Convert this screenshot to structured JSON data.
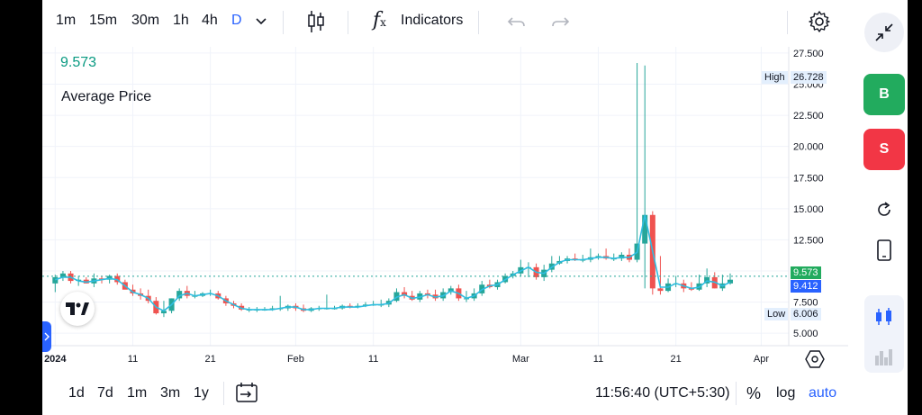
{
  "timeframes": [
    "1m",
    "15m",
    "30m",
    "1h",
    "4h",
    "D"
  ],
  "active_timeframe": "D",
  "toolbar": {
    "indicators_label": "Indicators"
  },
  "legend": {
    "last_price": "9.573",
    "title": "Average Price"
  },
  "price_axis": {
    "ticks": [
      "27.500",
      "25.000",
      "22.500",
      "20.000",
      "17.500",
      "15.000",
      "12.500",
      "7.500",
      "5.000"
    ],
    "high_label": "High",
    "high_value": "26.728",
    "low_label": "Low",
    "low_value": "6.006",
    "last_value": "9.573",
    "avg_value": "9.412"
  },
  "time_axis": {
    "labels": [
      "2024",
      "11",
      "21",
      "Feb",
      "11",
      "Mar",
      "11",
      "21",
      "Apr"
    ]
  },
  "bottom": {
    "ranges": [
      "1d",
      "7d",
      "1m",
      "3m",
      "1y"
    ],
    "clock": "11:56:40 (UTC+5:30)",
    "percent": "%",
    "log": "log",
    "auto": "auto"
  },
  "side": {
    "buy": "B",
    "sell": "S"
  },
  "colors": {
    "up": "#26a69a",
    "down": "#ef5350",
    "accent": "#2962ff",
    "buy": "#22ab5e",
    "sell": "#f23645",
    "line": "#2ebde0"
  },
  "chart_data": {
    "type": "candlestick",
    "x": [
      "2024-01-01",
      "2024-01-02",
      "2024-01-03",
      "2024-01-04",
      "2024-01-05",
      "2024-01-06",
      "2024-01-07",
      "2024-01-08",
      "2024-01-09",
      "2024-01-10",
      "2024-01-11",
      "2024-01-12",
      "2024-01-13",
      "2024-01-14",
      "2024-01-15",
      "2024-01-16",
      "2024-01-17",
      "2024-01-18",
      "2024-01-19",
      "2024-01-20",
      "2024-01-21",
      "2024-01-22",
      "2024-01-23",
      "2024-01-24",
      "2024-01-25",
      "2024-01-26",
      "2024-01-27",
      "2024-01-28",
      "2024-01-29",
      "2024-01-30",
      "2024-01-31",
      "2024-02-01",
      "2024-02-02",
      "2024-02-03",
      "2024-02-04",
      "2024-02-05",
      "2024-02-06",
      "2024-02-07",
      "2024-02-08",
      "2024-02-09",
      "2024-02-10",
      "2024-02-11",
      "2024-02-12",
      "2024-02-13",
      "2024-02-14",
      "2024-02-15",
      "2024-02-16",
      "2024-02-17",
      "2024-02-18",
      "2024-02-19",
      "2024-02-20",
      "2024-02-21",
      "2024-02-22",
      "2024-02-23",
      "2024-02-24",
      "2024-02-25",
      "2024-02-26",
      "2024-02-27",
      "2024-02-28",
      "2024-02-29",
      "2024-03-01",
      "2024-03-02",
      "2024-03-03",
      "2024-03-04",
      "2024-03-05",
      "2024-03-06",
      "2024-03-07",
      "2024-03-08",
      "2024-03-09",
      "2024-03-10",
      "2024-03-11",
      "2024-03-12",
      "2024-03-13",
      "2024-03-14",
      "2024-03-15",
      "2024-03-16",
      "2024-03-17",
      "2024-03-18",
      "2024-03-19",
      "2024-03-20",
      "2024-03-21",
      "2024-03-22",
      "2024-03-23",
      "2024-03-24",
      "2024-03-25",
      "2024-03-26",
      "2024-03-27",
      "2024-03-28"
    ],
    "open": [
      9.0,
      9.5,
      9.8,
      9.2,
      9.3,
      9.0,
      9.4,
      9.3,
      9.6,
      9.1,
      8.5,
      8.2,
      8.0,
      7.6,
      6.6,
      6.8,
      7.8,
      8.4,
      8.0,
      8.0,
      8.2,
      8.2,
      7.8,
      7.4,
      7.2,
      6.9,
      6.9,
      6.9,
      6.9,
      7.0,
      7.0,
      7.2,
      7.0,
      6.8,
      7.0,
      7.0,
      7.0,
      7.0,
      7.2,
      7.1,
      7.2,
      7.3,
      7.3,
      7.3,
      7.6,
      8.3,
      8.0,
      7.7,
      8.2,
      8.1,
      7.8,
      8.3,
      8.6,
      7.8,
      7.8,
      8.2,
      8.9,
      8.7,
      9.1,
      9.6,
      9.8,
      10.3,
      10.3,
      9.5,
      10.1,
      10.6,
      10.8,
      11.0,
      10.9,
      10.9,
      11.1,
      11.2,
      11.0,
      11.0,
      11.3,
      10.9,
      12.2,
      14.5,
      8.6,
      8.4,
      9.0,
      9.0,
      8.6,
      8.5,
      9.0,
      9.5,
      8.6,
      9.0
    ],
    "high": [
      9.7,
      10.0,
      10.0,
      9.6,
      9.5,
      9.8,
      9.6,
      9.7,
      9.8,
      9.3,
      8.9,
      8.6,
      8.5,
      7.9,
      7.6,
      7.8,
      8.6,
      8.8,
      8.4,
      8.3,
      8.5,
      8.4,
      8.0,
      7.6,
      7.4,
      7.1,
      7.1,
      7.1,
      7.2,
      8.0,
      7.3,
      7.4,
      7.3,
      7.1,
      7.2,
      8.1,
      7.2,
      7.3,
      7.4,
      7.4,
      7.5,
      7.6,
      7.7,
      7.8,
      8.6,
      8.7,
      8.4,
      8.4,
      8.5,
      8.5,
      8.6,
      8.8,
      8.9,
      8.4,
      8.6,
      9.2,
      9.3,
      9.3,
      9.8,
      10.0,
      10.9,
      10.7,
      10.6,
      10.5,
      11.2,
      11.2,
      11.2,
      11.4,
      11.3,
      11.8,
      11.4,
      11.8,
      11.4,
      11.5,
      11.8,
      26.7,
      26.5,
      14.8,
      11.2,
      9.4,
      9.6,
      9.3,
      9.1,
      9.7,
      10.2,
      9.9,
      9.7,
      9.8
    ],
    "low": [
      8.3,
      9.2,
      9.0,
      8.8,
      9.0,
      8.7,
      9.0,
      9.0,
      8.9,
      8.6,
      8.0,
      7.7,
      7.4,
      6.5,
      6.3,
      6.6,
      7.6,
      7.8,
      7.8,
      7.9,
      8.0,
      7.7,
      7.2,
      7.0,
      6.8,
      6.7,
      6.7,
      6.8,
      6.8,
      6.8,
      6.8,
      6.8,
      6.7,
      6.7,
      6.8,
      6.9,
      6.9,
      6.9,
      7.0,
      7.0,
      7.1,
      7.2,
      7.1,
      7.1,
      7.5,
      7.8,
      7.6,
      7.5,
      7.8,
      7.6,
      7.6,
      8.1,
      7.6,
      7.5,
      7.6,
      8.0,
      8.6,
      8.5,
      9.0,
      9.4,
      9.6,
      9.5,
      9.3,
      9.2,
      9.9,
      10.5,
      10.6,
      10.8,
      10.7,
      10.7,
      10.9,
      10.9,
      10.8,
      10.8,
      10.7,
      10.7,
      8.6,
      8.1,
      8.1,
      8.3,
      8.7,
      8.3,
      8.4,
      8.4,
      8.7,
      8.6,
      8.4,
      8.9
    ],
    "close": [
      9.5,
      9.8,
      9.2,
      9.3,
      9.0,
      9.4,
      9.3,
      9.6,
      9.1,
      8.5,
      8.2,
      8.0,
      7.6,
      6.6,
      6.8,
      7.8,
      8.4,
      8.0,
      8.0,
      8.2,
      8.2,
      7.8,
      7.4,
      7.2,
      6.9,
      6.9,
      6.9,
      6.9,
      7.0,
      7.0,
      7.2,
      7.0,
      6.8,
      7.0,
      7.0,
      7.0,
      7.0,
      7.2,
      7.1,
      7.2,
      7.3,
      7.3,
      7.3,
      7.6,
      8.3,
      8.0,
      7.7,
      8.2,
      8.1,
      7.8,
      8.3,
      8.6,
      7.8,
      7.8,
      8.2,
      8.9,
      8.7,
      9.1,
      9.6,
      9.8,
      10.3,
      10.3,
      9.5,
      10.1,
      10.6,
      10.8,
      11.0,
      10.9,
      10.9,
      11.1,
      11.2,
      11.0,
      11.0,
      11.3,
      10.9,
      12.2,
      14.5,
      8.6,
      8.4,
      9.0,
      9.0,
      8.6,
      8.5,
      9.0,
      9.5,
      8.6,
      9.0,
      9.3
    ],
    "average_line": [
      9.3,
      9.5,
      9.5,
      9.2,
      9.1,
      9.2,
      9.3,
      9.4,
      9.3,
      8.8,
      8.3,
      8.1,
      7.8,
      7.1,
      6.8,
      7.3,
      8.0,
      8.2,
      8.0,
      8.1,
      8.2,
      8.0,
      7.6,
      7.3,
      7.0,
      6.9,
      6.9,
      6.9,
      6.9,
      7.0,
      7.1,
      7.1,
      6.9,
      6.9,
      7.0,
      7.0,
      7.0,
      7.1,
      7.1,
      7.1,
      7.2,
      7.3,
      7.3,
      7.4,
      7.9,
      8.1,
      7.8,
      7.9,
      8.1,
      7.9,
      8.0,
      8.4,
      8.2,
      7.8,
      8.0,
      8.5,
      8.8,
      8.9,
      9.3,
      9.7,
      10.0,
      10.3,
      9.9,
      9.8,
      10.3,
      10.7,
      10.9,
      10.9,
      10.9,
      11.0,
      11.1,
      11.1,
      11.0,
      11.1,
      11.1,
      11.5,
      14.5,
      11.6,
      8.7,
      8.7,
      9.0,
      8.8,
      8.6,
      8.7,
      9.2,
      9.1,
      8.8,
      9.1
    ],
    "ylim": [
      4.0,
      28.0
    ]
  }
}
